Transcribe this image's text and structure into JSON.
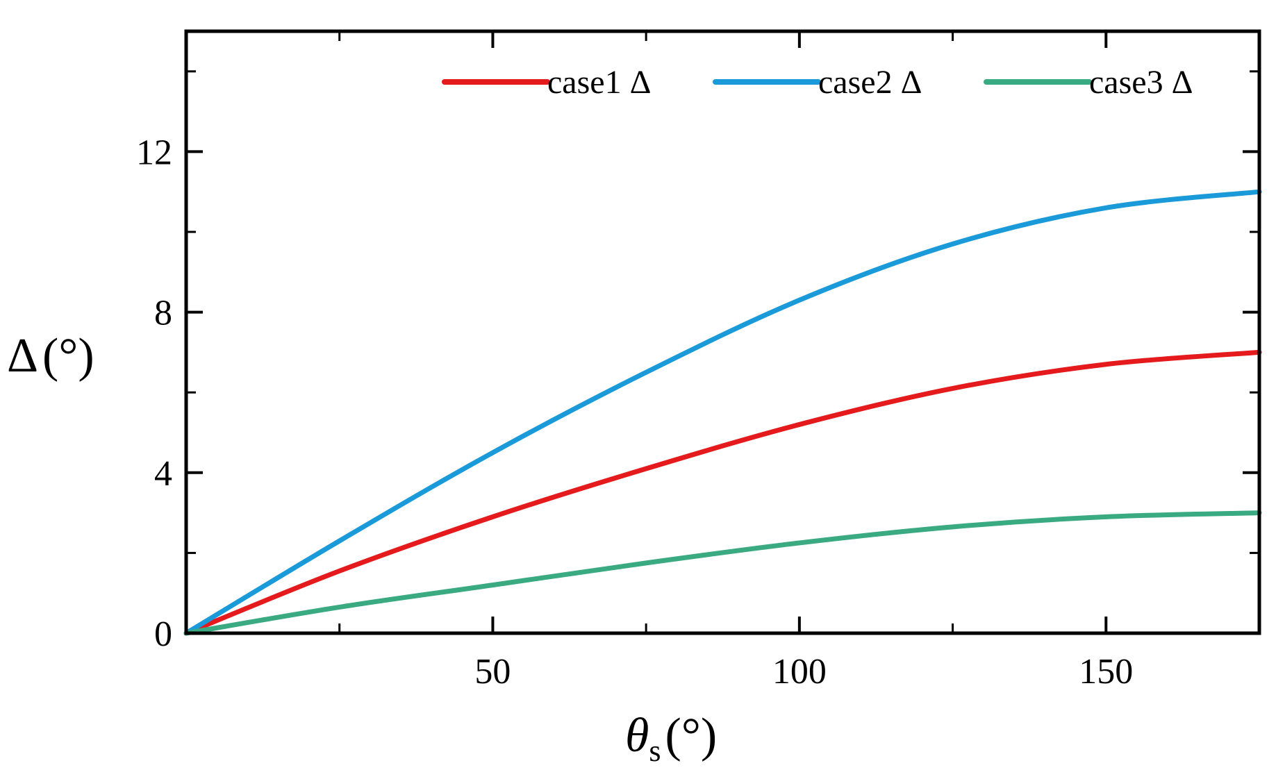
{
  "chart_data": {
    "type": "line",
    "title": "",
    "xlabel": "θ",
    "xlabel_sub": "s",
    "xlabel_unit": "(°)",
    "ylabel": "Δ",
    "ylabel_unit": "(°)",
    "xlim": [
      0,
      175
    ],
    "ylim": [
      0,
      15
    ],
    "x_ticks": [
      50,
      100,
      150
    ],
    "x_tick_labels": [
      "50",
      "100",
      "150"
    ],
    "x_minor_ticks": [
      25,
      75,
      125
    ],
    "y_ticks": [
      0,
      4,
      8,
      12
    ],
    "y_tick_labels": [
      "0",
      "4",
      "8",
      "12"
    ],
    "y_minor_ticks": [
      2,
      6,
      10,
      14
    ],
    "grid": false,
    "legend_position": "top-right",
    "series": [
      {
        "name": "case1 Δ",
        "color": "#e41a1c",
        "x": [
          0,
          25,
          50,
          75,
          100,
          125,
          150,
          175
        ],
        "y": [
          0,
          1.55,
          2.9,
          4.1,
          5.2,
          6.1,
          6.7,
          7.0
        ]
      },
      {
        "name": "case2 Δ",
        "color": "#1a9ad9",
        "x": [
          0,
          25,
          50,
          75,
          100,
          125,
          150,
          175
        ],
        "y": [
          0,
          2.3,
          4.5,
          6.5,
          8.3,
          9.7,
          10.6,
          11.0
        ]
      },
      {
        "name": "case3 Δ",
        "color": "#3aaa82",
        "x": [
          0,
          25,
          50,
          75,
          100,
          125,
          150,
          175
        ],
        "y": [
          0,
          0.65,
          1.2,
          1.75,
          2.25,
          2.65,
          2.9,
          3.0
        ]
      }
    ]
  }
}
